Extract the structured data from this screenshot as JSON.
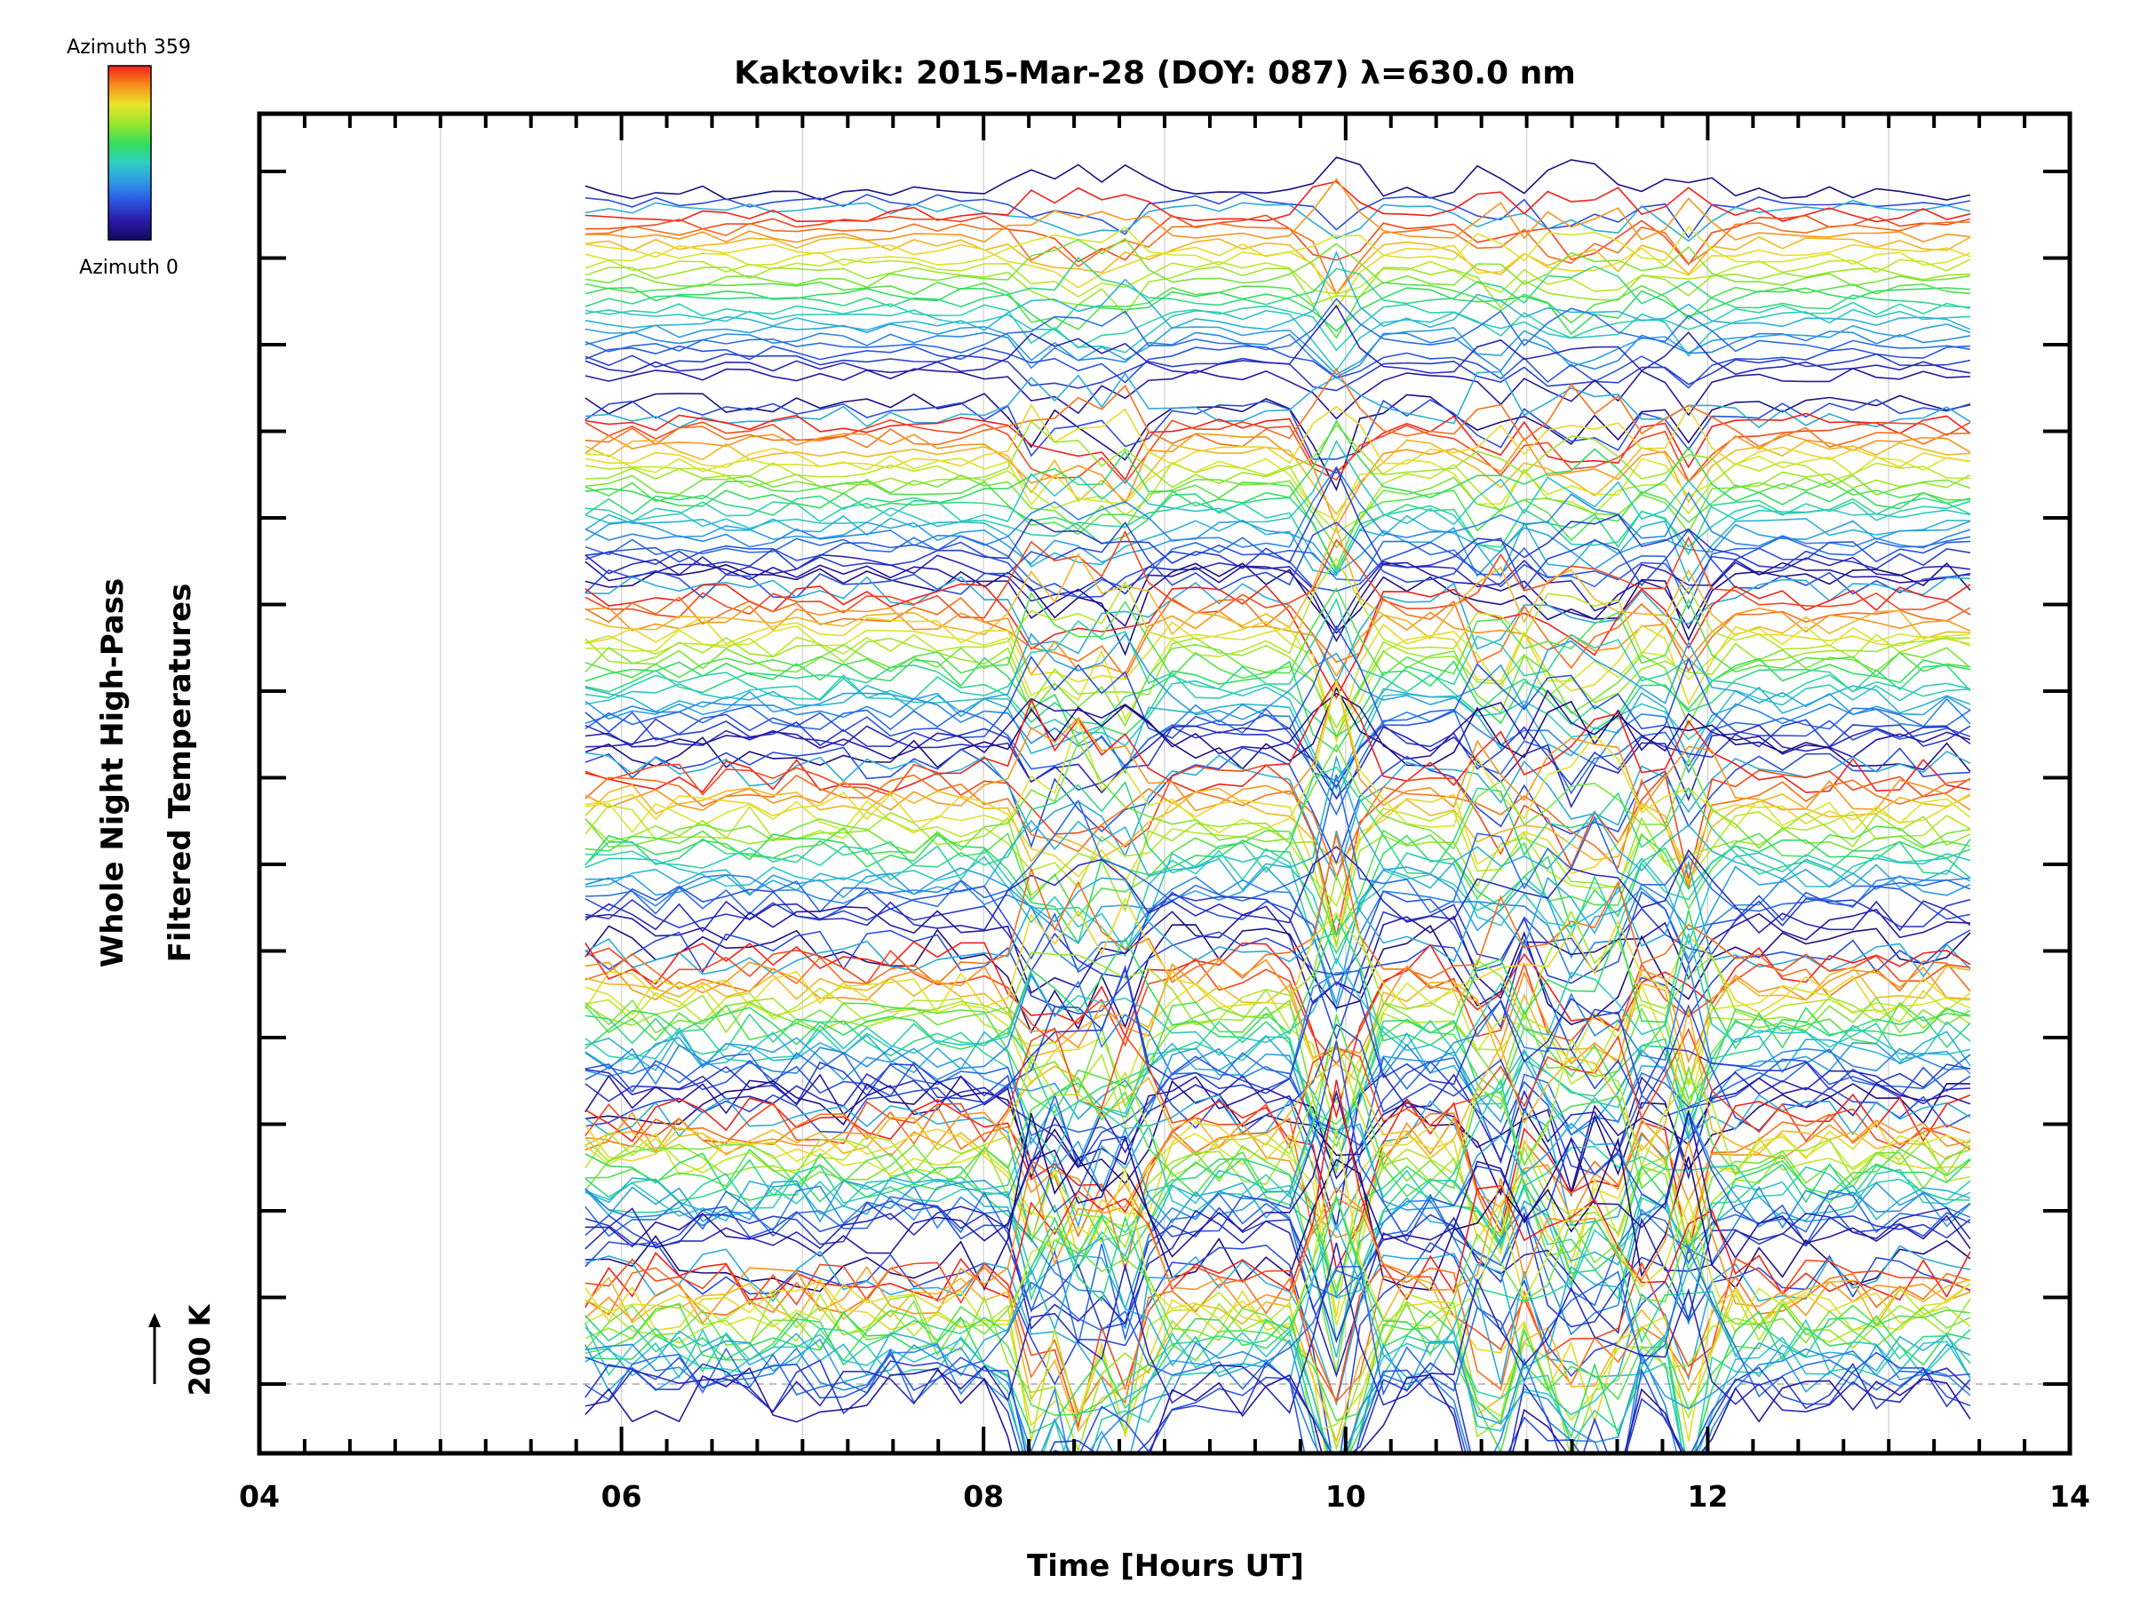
{
  "chart_data": {
    "type": "line",
    "title": "Kaktovik: 2015-Mar-28 (DOY: 087) λ=630.0 nm",
    "xlabel": "Time [Hours UT]",
    "ylabel_line1": "Whole Night High-Pass",
    "ylabel_line2": "Filtered Temperatures",
    "xlim": [
      4,
      14
    ],
    "x_ticks": [
      "04",
      "06",
      "08",
      "10",
      "12",
      "14"
    ],
    "x_tick_values": [
      4,
      6,
      8,
      10,
      12,
      14
    ],
    "x_minor_step": 0.25,
    "vertical_gridlines": [
      5,
      6,
      7,
      8,
      9,
      10,
      11,
      12,
      13
    ],
    "scale_bar_label": "200 K",
    "colorbar": {
      "top_label": "Azimuth 359",
      "bottom_label": "Azimuth 0",
      "colors": [
        "#f0211a",
        "#f88c1c",
        "#eae52a",
        "#9be62c",
        "#35de5a",
        "#2ecfc0",
        "#2d9ae6",
        "#2a54e0",
        "#2a1aa8",
        "#120a60"
      ]
    },
    "time_range": [
      5.8,
      13.45
    ],
    "groups": 7,
    "lines_per_group": 26,
    "activity_peaks": [
      8.3,
      8.55,
      8.8,
      9.9,
      10.0,
      10.8,
      11.2,
      11.45,
      11.9
    ],
    "series_note": ""
  }
}
